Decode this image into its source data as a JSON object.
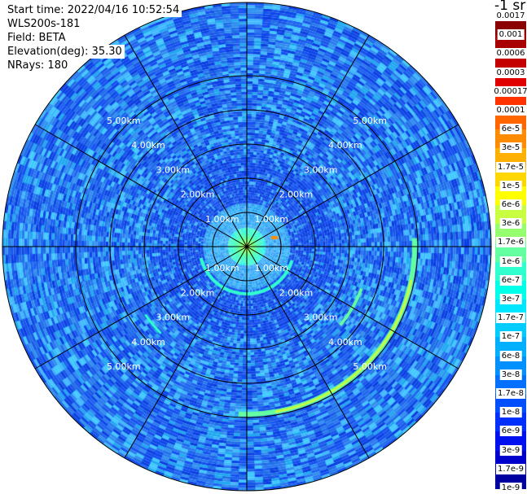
{
  "info": {
    "start_time": "Start time: 2022/04/16 10:52:54",
    "instrument": "WLS200s-181",
    "field": "Field: BETA",
    "elevation": "Elevation(deg): 35.30",
    "nrays": "NRays: 180"
  },
  "colorbar": {
    "unit": "-1 sr",
    "labels": [
      "0.0017",
      "0.001",
      "0.0006",
      "0.0003",
      "0.00017",
      "0.0001",
      "6e-5",
      "3e-5",
      "1.7e-5",
      "1e-5",
      "6e-6",
      "3e-6",
      "1.7e-6",
      "1e-6",
      "6e-7",
      "3e-7",
      "1.7e-7",
      "1e-7",
      "6e-8",
      "3e-8",
      "1.7e-8",
      "1e-8",
      "6e-9",
      "3e-9",
      "1.7e-9",
      "1e-9"
    ],
    "colors": [
      "#8b0000",
      "#a80000",
      "#c40000",
      "#e00000",
      "#ff3300",
      "#ff6600",
      "#ff8c00",
      "#ffb000",
      "#ffd700",
      "#ffff00",
      "#c8ff40",
      "#96ff6e",
      "#64ffa0",
      "#30ffd0",
      "#00ffe8",
      "#00e6ff",
      "#00ccff",
      "#00b0ff",
      "#0090ff",
      "#0070ff",
      "#0050ff",
      "#0030ff",
      "#0010ee",
      "#0000cc",
      "#0000a0",
      "#000070"
    ]
  },
  "radar": {
    "ring_labels": [
      "1.00km",
      "2.00km",
      "3.00km",
      "4.00km",
      "5.00km"
    ],
    "background_color": "#1e6fe8"
  }
}
